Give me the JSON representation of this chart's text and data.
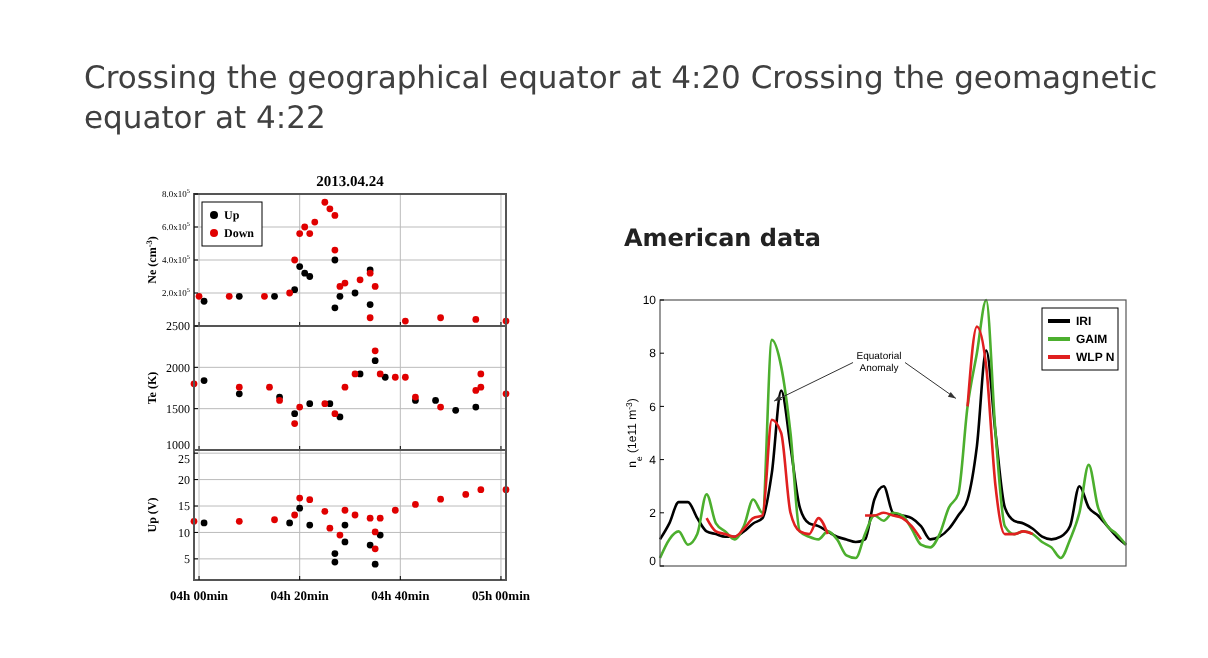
{
  "chart_data": [
    {
      "type": "scatter",
      "title": "Crossing the geographical equator at 4:20 Crossing the geomagnetic equator at 4:22",
      "subtitle": "2013.04.24",
      "ylabel": "Ne (cm$^{-3}$)",
      "xlim": [
        "2013-04-24T03:59",
        "2013-04-24T05:01"
      ],
      "xticks": [
        {
          "value": "2013-04-24T04:00",
          "label": null
        },
        {
          "value": "2013-04-24T04:20",
          "label": null
        },
        {
          "value": "2013-04-24T04:40",
          "label": null
        },
        {
          "value": "2013-04-24T05:00",
          "label": null
        }
      ],
      "ylim": [
        0,
        800000
      ],
      "yticks": [
        {
          "value": 200000,
          "label": "2.0x10$^{5}$"
        },
        {
          "value": 400000,
          "label": "4.0x10$^{5}$"
        },
        {
          "value": 600000,
          "label": "6.0x10$^{5}$"
        },
        {
          "value": 800000,
          "label": "8.0x10$^{5}$"
        }
      ],
      "tick_labels": "y",
      "grid": true,
      "legend": "top left",
      "marker": "circle",
      "series": [
        {
          "name": "Up",
          "color": "#000000",
          "x": [
            "2013-04-24T04:01",
            "2013-04-24T04:08",
            "2013-04-24T04:15",
            "2013-04-24T04:19",
            "2013-04-24T04:20",
            "2013-04-24T04:21",
            "2013-04-24T04:22",
            "2013-04-24T04:27",
            "2013-04-24T04:27",
            "2013-04-24T04:28",
            "2013-04-24T04:31",
            "2013-04-24T04:34",
            "2013-04-24T04:34"
          ],
          "values": [
            150000,
            180000,
            180000,
            220000,
            360000,
            320000,
            300000,
            400000,
            110000,
            180000,
            200000,
            340000,
            130000
          ]
        },
        {
          "name": "Down",
          "color": "#e00000",
          "x": [
            "2013-04-24T04:00",
            "2013-04-24T04:06",
            "2013-04-24T04:13",
            "2013-04-24T04:18",
            "2013-04-24T04:19",
            "2013-04-24T04:20",
            "2013-04-24T04:21",
            "2013-04-24T04:22",
            "2013-04-24T04:23",
            "2013-04-24T04:25",
            "2013-04-24T04:26",
            "2013-04-24T04:27",
            "2013-04-24T04:27",
            "2013-04-24T04:28",
            "2013-04-24T04:29",
            "2013-04-24T04:32",
            "2013-04-24T04:34",
            "2013-04-24T04:35",
            "2013-04-24T04:34",
            "2013-04-24T04:41",
            "2013-04-24T04:48",
            "2013-04-24T04:55",
            "2013-04-24T05:01"
          ],
          "values": [
            180000,
            180000,
            180000,
            200000,
            400000,
            560000,
            600000,
            560000,
            630000,
            750000,
            710000,
            670000,
            460000,
            240000,
            260000,
            280000,
            320000,
            240000,
            50000,
            30000,
            50000,
            40000,
            30000
          ]
        }
      ]
    },
    {
      "type": "scatter",
      "ylabel": "Te (K)",
      "xlim": [
        "2013-04-24T03:59",
        "2013-04-24T05:01"
      ],
      "xticks": [
        {
          "value": "2013-04-24T04:00",
          "label": null
        },
        {
          "value": "2013-04-24T04:20",
          "label": null
        },
        {
          "value": "2013-04-24T04:40",
          "label": null
        },
        {
          "value": "2013-04-24T05:00",
          "label": null
        }
      ],
      "ylim": [
        1000,
        2500
      ],
      "yticks": [
        1000,
        1500,
        2000,
        2500
      ],
      "tick_labels": "y",
      "grid": true,
      "marker": "circle",
      "series": [
        {
          "color": "#000000",
          "x": [
            "2013-04-24T04:01",
            "2013-04-24T04:08",
            "2013-04-24T04:16",
            "2013-04-24T04:19",
            "2013-04-24T04:22",
            "2013-04-24T04:26",
            "2013-04-24T04:28",
            "2013-04-24T04:32",
            "2013-04-24T04:35",
            "2013-04-24T04:37",
            "2013-04-24T04:43",
            "2013-04-24T04:47",
            "2013-04-24T04:51",
            "2013-04-24T04:55"
          ],
          "values": [
            1840,
            1680,
            1640,
            1440,
            1560,
            1560,
            1400,
            1920,
            2080,
            1880,
            1600,
            1600,
            1480,
            1520
          ]
        },
        {
          "color": "#e00000",
          "x": [
            "2013-04-24T03:59",
            "2013-04-24T04:08",
            "2013-04-24T04:14",
            "2013-04-24T04:16",
            "2013-04-24T04:19",
            "2013-04-24T04:20",
            "2013-04-24T04:25",
            "2013-04-24T04:27",
            "2013-04-24T04:29",
            "2013-04-24T04:31",
            "2013-04-24T04:35",
            "2013-04-24T04:36",
            "2013-04-24T04:39",
            "2013-04-24T04:41",
            "2013-04-24T04:43",
            "2013-04-24T04:48",
            "2013-04-24T04:55",
            "2013-04-24T04:56",
            "2013-04-24T04:56",
            "2013-04-24T05:01"
          ],
          "values": [
            1800,
            1760,
            1760,
            1600,
            1320,
            1520,
            1560,
            1440,
            1760,
            1920,
            2200,
            1920,
            1880,
            1880,
            1640,
            1520,
            1720,
            1920,
            1760,
            1680
          ]
        }
      ]
    },
    {
      "type": "scatter",
      "ylabel": "Up (V)",
      "xlim": [
        "2013-04-24T03:59",
        "2013-04-24T05:01"
      ],
      "xticks": [
        {
          "value": "2013-04-24T04:00",
          "label": "04h 00min"
        },
        {
          "value": "2013-04-24T04:20",
          "label": "04h 20min"
        },
        {
          "value": "2013-04-24T04:40",
          "label": "04h 40min"
        },
        {
          "value": "2013-04-24T05:00",
          "label": "05h 00min"
        }
      ],
      "ylim": [
        1,
        25.6
      ],
      "yticks": [
        5,
        10,
        15,
        20,
        25
      ],
      "grid": true,
      "marker": "circle",
      "series": [
        {
          "color": "#000000",
          "x": [
            "2013-04-24T04:01",
            "2013-04-24T04:18",
            "2013-04-24T04:20",
            "2013-04-24T04:22",
            "2013-04-24T04:27",
            "2013-04-24T04:27",
            "2013-04-24T04:29",
            "2013-04-24T04:29",
            "2013-04-24T04:34",
            "2013-04-24T04:35",
            "2013-04-24T04:36"
          ],
          "values": [
            11.8,
            11.8,
            14.6,
            11.4,
            6.0,
            4.4,
            8.2,
            11.4,
            7.6,
            4.0,
            9.5
          ]
        },
        {
          "color": "#e00000",
          "x": [
            "2013-04-24T03:59",
            "2013-04-24T04:08",
            "2013-04-24T04:15",
            "2013-04-24T04:19",
            "2013-04-24T04:20",
            "2013-04-24T04:22",
            "2013-04-24T04:25",
            "2013-04-24T04:26",
            "2013-04-24T04:28",
            "2013-04-24T04:29",
            "2013-04-24T04:31",
            "2013-04-24T04:34",
            "2013-04-24T04:35",
            "2013-04-24T04:35",
            "2013-04-24T04:36",
            "2013-04-24T04:39",
            "2013-04-24T04:43",
            "2013-04-24T04:48",
            "2013-04-24T04:53",
            "2013-04-24T04:56",
            "2013-04-24T05:01"
          ],
          "values": [
            12.1,
            12.1,
            12.4,
            13.3,
            16.5,
            16.2,
            14.0,
            10.8,
            9.5,
            14.2,
            13.3,
            12.7,
            10.1,
            6.9,
            12.7,
            14.2,
            15.3,
            16.3,
            17.2,
            18.1,
            18.1
          ]
        }
      ]
    },
    {
      "type": "line",
      "title": "American data",
      "ylabel": "n$_{e}$ (1e11 m$^{-3}$)",
      "categories": [
        null,
        null,
        null,
        null,
        null,
        null,
        null,
        null,
        null,
        null,
        null,
        null,
        null,
        null,
        null,
        null,
        null,
        null,
        null,
        null,
        null,
        null,
        null,
        null,
        null,
        null,
        null,
        null,
        null,
        null,
        null,
        null,
        null,
        null,
        null,
        null,
        null,
        null,
        null,
        null,
        null,
        null,
        null,
        null,
        null,
        null,
        null,
        null,
        null,
        null,
        null
      ],
      "ylim": [
        0,
        10
      ],
      "yticks": [
        0,
        2,
        4,
        6,
        8,
        10
      ],
      "tick_labels": "y",
      "legend": "top right",
      "annotations": [
        "Equatorial Anomaly"
      ],
      "series": [
        {
          "name": "IRI",
          "color": "#000000",
          "values": [
            1.0,
            1.6,
            2.4,
            2.4,
            1.8,
            1.3,
            1.2,
            1.1,
            1.1,
            1.3,
            1.6,
            1.8,
            3.5,
            6.6,
            4.5,
            2.2,
            1.6,
            1.5,
            1.3,
            1.1,
            1.0,
            0.9,
            1.0,
            2.5,
            3.0,
            2.0,
            1.9,
            1.8,
            1.5,
            1.0,
            1.1,
            1.4,
            1.9,
            2.5,
            4.5,
            8.1,
            5.0,
            2.2,
            1.7,
            1.6,
            1.4,
            1.1,
            1.0,
            1.1,
            1.5,
            3.0,
            2.2,
            1.9,
            1.5,
            1.1,
            0.8
          ]
        },
        {
          "name": "GAIM",
          "color": "#4caf2e",
          "values": [
            0.3,
            1.0,
            1.3,
            0.8,
            1.2,
            2.7,
            1.6,
            1.3,
            1.0,
            1.5,
            2.5,
            2.0,
            8.5,
            7.5,
            5.0,
            1.3,
            1.1,
            1.0,
            1.3,
            1.0,
            0.4,
            0.3,
            1.2,
            1.9,
            1.7,
            2.0,
            1.9,
            1.4,
            0.8,
            0.7,
            1.2,
            2.2,
            2.7,
            6.0,
            8.0,
            10.0,
            5.0,
            1.5,
            1.2,
            1.3,
            1.2,
            0.9,
            0.7,
            0.3,
            1.0,
            2.0,
            3.8,
            2.2,
            1.5,
            1.2,
            0.8
          ]
        },
        {
          "name": "WLP N",
          "color": "#e02020",
          "values": [
            null,
            null,
            null,
            null,
            null,
            1.8,
            1.3,
            1.2,
            1.1,
            1.4,
            1.8,
            1.9,
            5.5,
            5.0,
            2.0,
            1.3,
            1.2,
            1.8,
            1.2,
            null,
            null,
            null,
            1.9,
            1.9,
            2.0,
            1.9,
            1.8,
            1.5,
            1.0,
            null,
            null,
            null,
            null,
            6.0,
            9.0,
            7.5,
            3.0,
            1.2,
            1.2,
            1.3,
            1.2,
            null,
            null,
            null,
            null,
            null,
            null,
            null,
            null,
            null,
            null
          ]
        }
      ]
    }
  ]
}
